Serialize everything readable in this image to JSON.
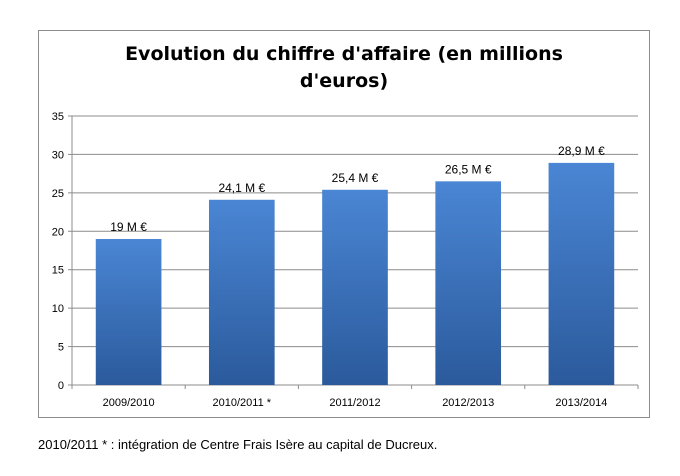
{
  "chart_data": {
    "type": "bar",
    "title": [
      "Evolution du chiffre d'affaire (en millions",
      "d'euros)"
    ],
    "categories": [
      "2009/2010",
      "2010/2011 *",
      "2011/2012",
      "2012/2013",
      "2013/2014"
    ],
    "values": [
      19,
      24.1,
      25.4,
      26.5,
      28.9
    ],
    "data_labels": [
      "19 M €",
      "24,1 M €",
      "25,4 M €",
      "26,5 M €",
      "28,9 M €"
    ],
    "ylim": [
      0,
      35
    ],
    "yticks": [
      0,
      5,
      10,
      15,
      20,
      25,
      30,
      35
    ],
    "grid": true,
    "legend": "none",
    "bar_color_top": "#4a86d4",
    "bar_color_bottom": "#2b5a9c"
  },
  "footnote": "2010/2011 * : intégration de Centre Frais Isère au capital de Ducreux."
}
